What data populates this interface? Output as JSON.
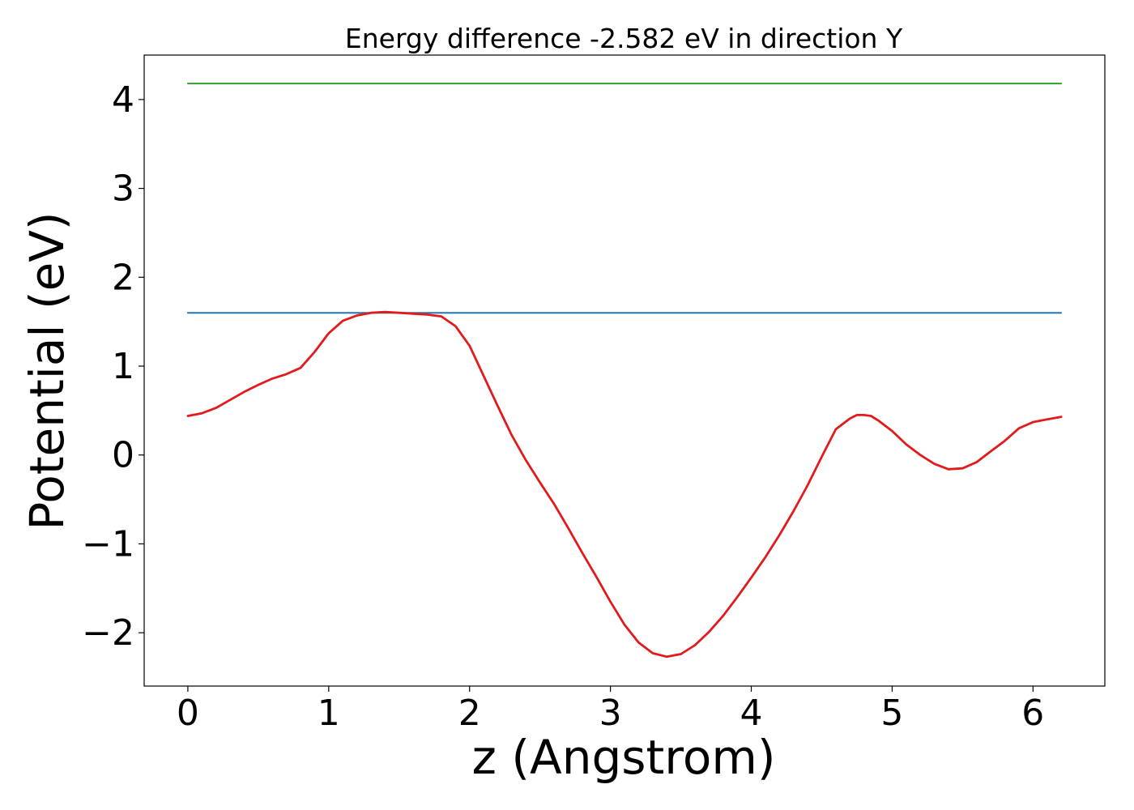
{
  "chart_data": {
    "type": "line",
    "title": "Energy difference -2.582 eV in direction Y",
    "xlabel": "z (Angstrom)",
    "ylabel": "Potential (eV)",
    "xlim": [
      -0.31,
      6.51
    ],
    "ylim": [
      -2.6,
      4.5
    ],
    "x_ticks": [
      0,
      1,
      2,
      3,
      4,
      5,
      6
    ],
    "x_tick_labels": [
      "0",
      "1",
      "2",
      "3",
      "4",
      "5",
      "6"
    ],
    "y_ticks": [
      -2,
      -1,
      0,
      1,
      2,
      3,
      4
    ],
    "y_tick_labels": [
      "−2",
      "−1",
      "0",
      "1",
      "2",
      "3",
      "4"
    ],
    "grid": false,
    "series": [
      {
        "color": "#2ca02c",
        "x": [
          0,
          6.2
        ],
        "y": [
          4.18,
          4.18
        ]
      },
      {
        "color": "#1f77b4",
        "x": [
          0,
          6.2
        ],
        "y": [
          1.6,
          1.6
        ]
      },
      {
        "color": "#e31a1c",
        "x": [
          0,
          0.1,
          0.2,
          0.3,
          0.4,
          0.5,
          0.6,
          0.7,
          0.8,
          0.9,
          1.0,
          1.1,
          1.2,
          1.3,
          1.4,
          1.5,
          1.6,
          1.7,
          1.8,
          1.9,
          2.0,
          2.1,
          2.2,
          2.3,
          2.4,
          2.5,
          2.6,
          2.7,
          2.8,
          2.9,
          3.0,
          3.1,
          3.2,
          3.3,
          3.4,
          3.5,
          3.6,
          3.7,
          3.8,
          3.9,
          4.0,
          4.1,
          4.2,
          4.3,
          4.4,
          4.5,
          4.6,
          4.7,
          4.75,
          4.8,
          4.85,
          4.9,
          5.0,
          5.1,
          5.2,
          5.3,
          5.4,
          5.5,
          5.6,
          5.7,
          5.8,
          5.9,
          6.0,
          6.1,
          6.2
        ],
        "y": [
          0.44,
          0.47,
          0.53,
          0.62,
          0.71,
          0.79,
          0.86,
          0.91,
          0.98,
          1.16,
          1.37,
          1.51,
          1.57,
          1.6,
          1.61,
          1.6,
          1.59,
          1.58,
          1.56,
          1.45,
          1.23,
          0.89,
          0.55,
          0.22,
          -0.06,
          -0.31,
          -0.55,
          -0.82,
          -1.1,
          -1.37,
          -1.65,
          -1.91,
          -2.11,
          -2.23,
          -2.27,
          -2.24,
          -2.14,
          -1.99,
          -1.81,
          -1.6,
          -1.38,
          -1.15,
          -0.9,
          -0.63,
          -0.34,
          -0.02,
          0.29,
          0.41,
          0.45,
          0.45,
          0.44,
          0.39,
          0.27,
          0.12,
          0.0,
          -0.1,
          -0.16,
          -0.15,
          -0.08,
          0.04,
          0.16,
          0.3,
          0.37,
          0.4,
          0.43
        ]
      }
    ]
  }
}
